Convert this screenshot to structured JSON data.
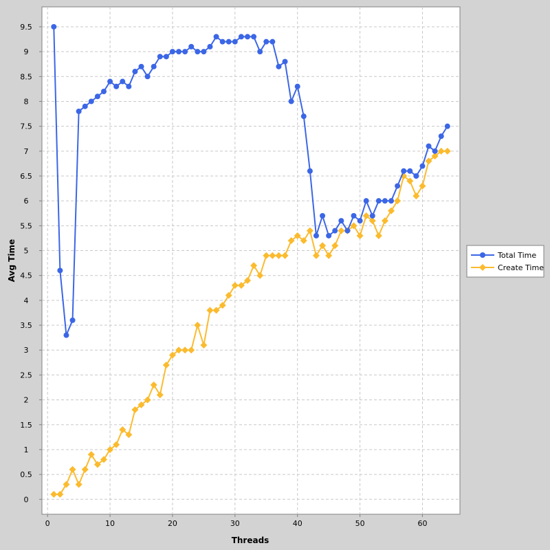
{
  "chart_data": {
    "type": "line",
    "title": "",
    "xlabel": "Threads",
    "ylabel": "Avg Time",
    "xlim": [
      -0.9,
      66
    ],
    "ylim": [
      -0.3,
      9.9
    ],
    "x_ticks": [
      0,
      10,
      20,
      30,
      40,
      50,
      60
    ],
    "y_ticks": [
      0,
      0.5,
      1,
      1.5,
      2,
      2.5,
      3,
      3.5,
      4,
      4.5,
      5,
      5.5,
      6,
      6.5,
      7,
      7.5,
      8,
      8.5,
      9,
      9.5
    ],
    "grid": true,
    "legend_position": "right",
    "background": "#ffffff",
    "x": [
      1,
      2,
      3,
      4,
      5,
      6,
      7,
      8,
      9,
      10,
      11,
      12,
      13,
      14,
      15,
      16,
      17,
      18,
      19,
      20,
      21,
      22,
      23,
      24,
      25,
      26,
      27,
      28,
      29,
      30,
      31,
      32,
      33,
      34,
      35,
      36,
      37,
      38,
      39,
      40,
      41,
      42,
      43,
      44,
      45,
      46,
      47,
      48,
      49,
      50,
      51,
      52,
      53,
      54,
      55,
      56,
      57,
      58,
      59,
      60,
      61,
      62,
      63,
      64
    ],
    "series": [
      {
        "name": "Total Time",
        "color": "#3b66e6",
        "marker": "circle",
        "values": [
          9.5,
          4.6,
          3.3,
          3.6,
          7.8,
          7.9,
          8.0,
          8.1,
          8.2,
          8.4,
          8.3,
          8.4,
          8.3,
          8.6,
          8.7,
          8.5,
          8.7,
          8.9,
          8.9,
          9.0,
          9.0,
          9.0,
          9.1,
          9.0,
          9.0,
          9.1,
          9.3,
          9.2,
          9.2,
          9.2,
          9.3,
          9.3,
          9.3,
          9.0,
          9.2,
          9.2,
          8.7,
          8.8,
          8.0,
          8.3,
          7.7,
          6.6,
          5.3,
          5.7,
          5.3,
          5.4,
          5.6,
          5.4,
          5.7,
          5.6,
          6.0,
          5.7,
          6.0,
          6.0,
          6.0,
          6.3,
          6.6,
          6.6,
          6.5,
          6.7,
          7.1,
          7.0,
          7.3,
          7.5
        ]
      },
      {
        "name": "Create Time",
        "color": "#fbbb2e",
        "marker": "diamond",
        "values": [
          0.1,
          0.1,
          0.3,
          0.6,
          0.3,
          0.6,
          0.9,
          0.7,
          0.8,
          1.0,
          1.1,
          1.4,
          1.3,
          1.8,
          1.9,
          2.0,
          2.3,
          2.1,
          2.7,
          2.9,
          3.0,
          3.0,
          3.0,
          3.5,
          3.1,
          3.8,
          3.8,
          3.9,
          4.1,
          4.3,
          4.3,
          4.4,
          4.7,
          4.5,
          4.9,
          4.9,
          4.9,
          4.9,
          5.2,
          5.3,
          5.2,
          5.4,
          4.9,
          5.1,
          4.9,
          5.1,
          5.4,
          5.4,
          5.5,
          5.3,
          5.7,
          5.6,
          5.3,
          5.6,
          5.8,
          6.0,
          6.5,
          6.4,
          6.1,
          6.3,
          6.8,
          6.9,
          7.0,
          7.0
        ]
      }
    ]
  }
}
